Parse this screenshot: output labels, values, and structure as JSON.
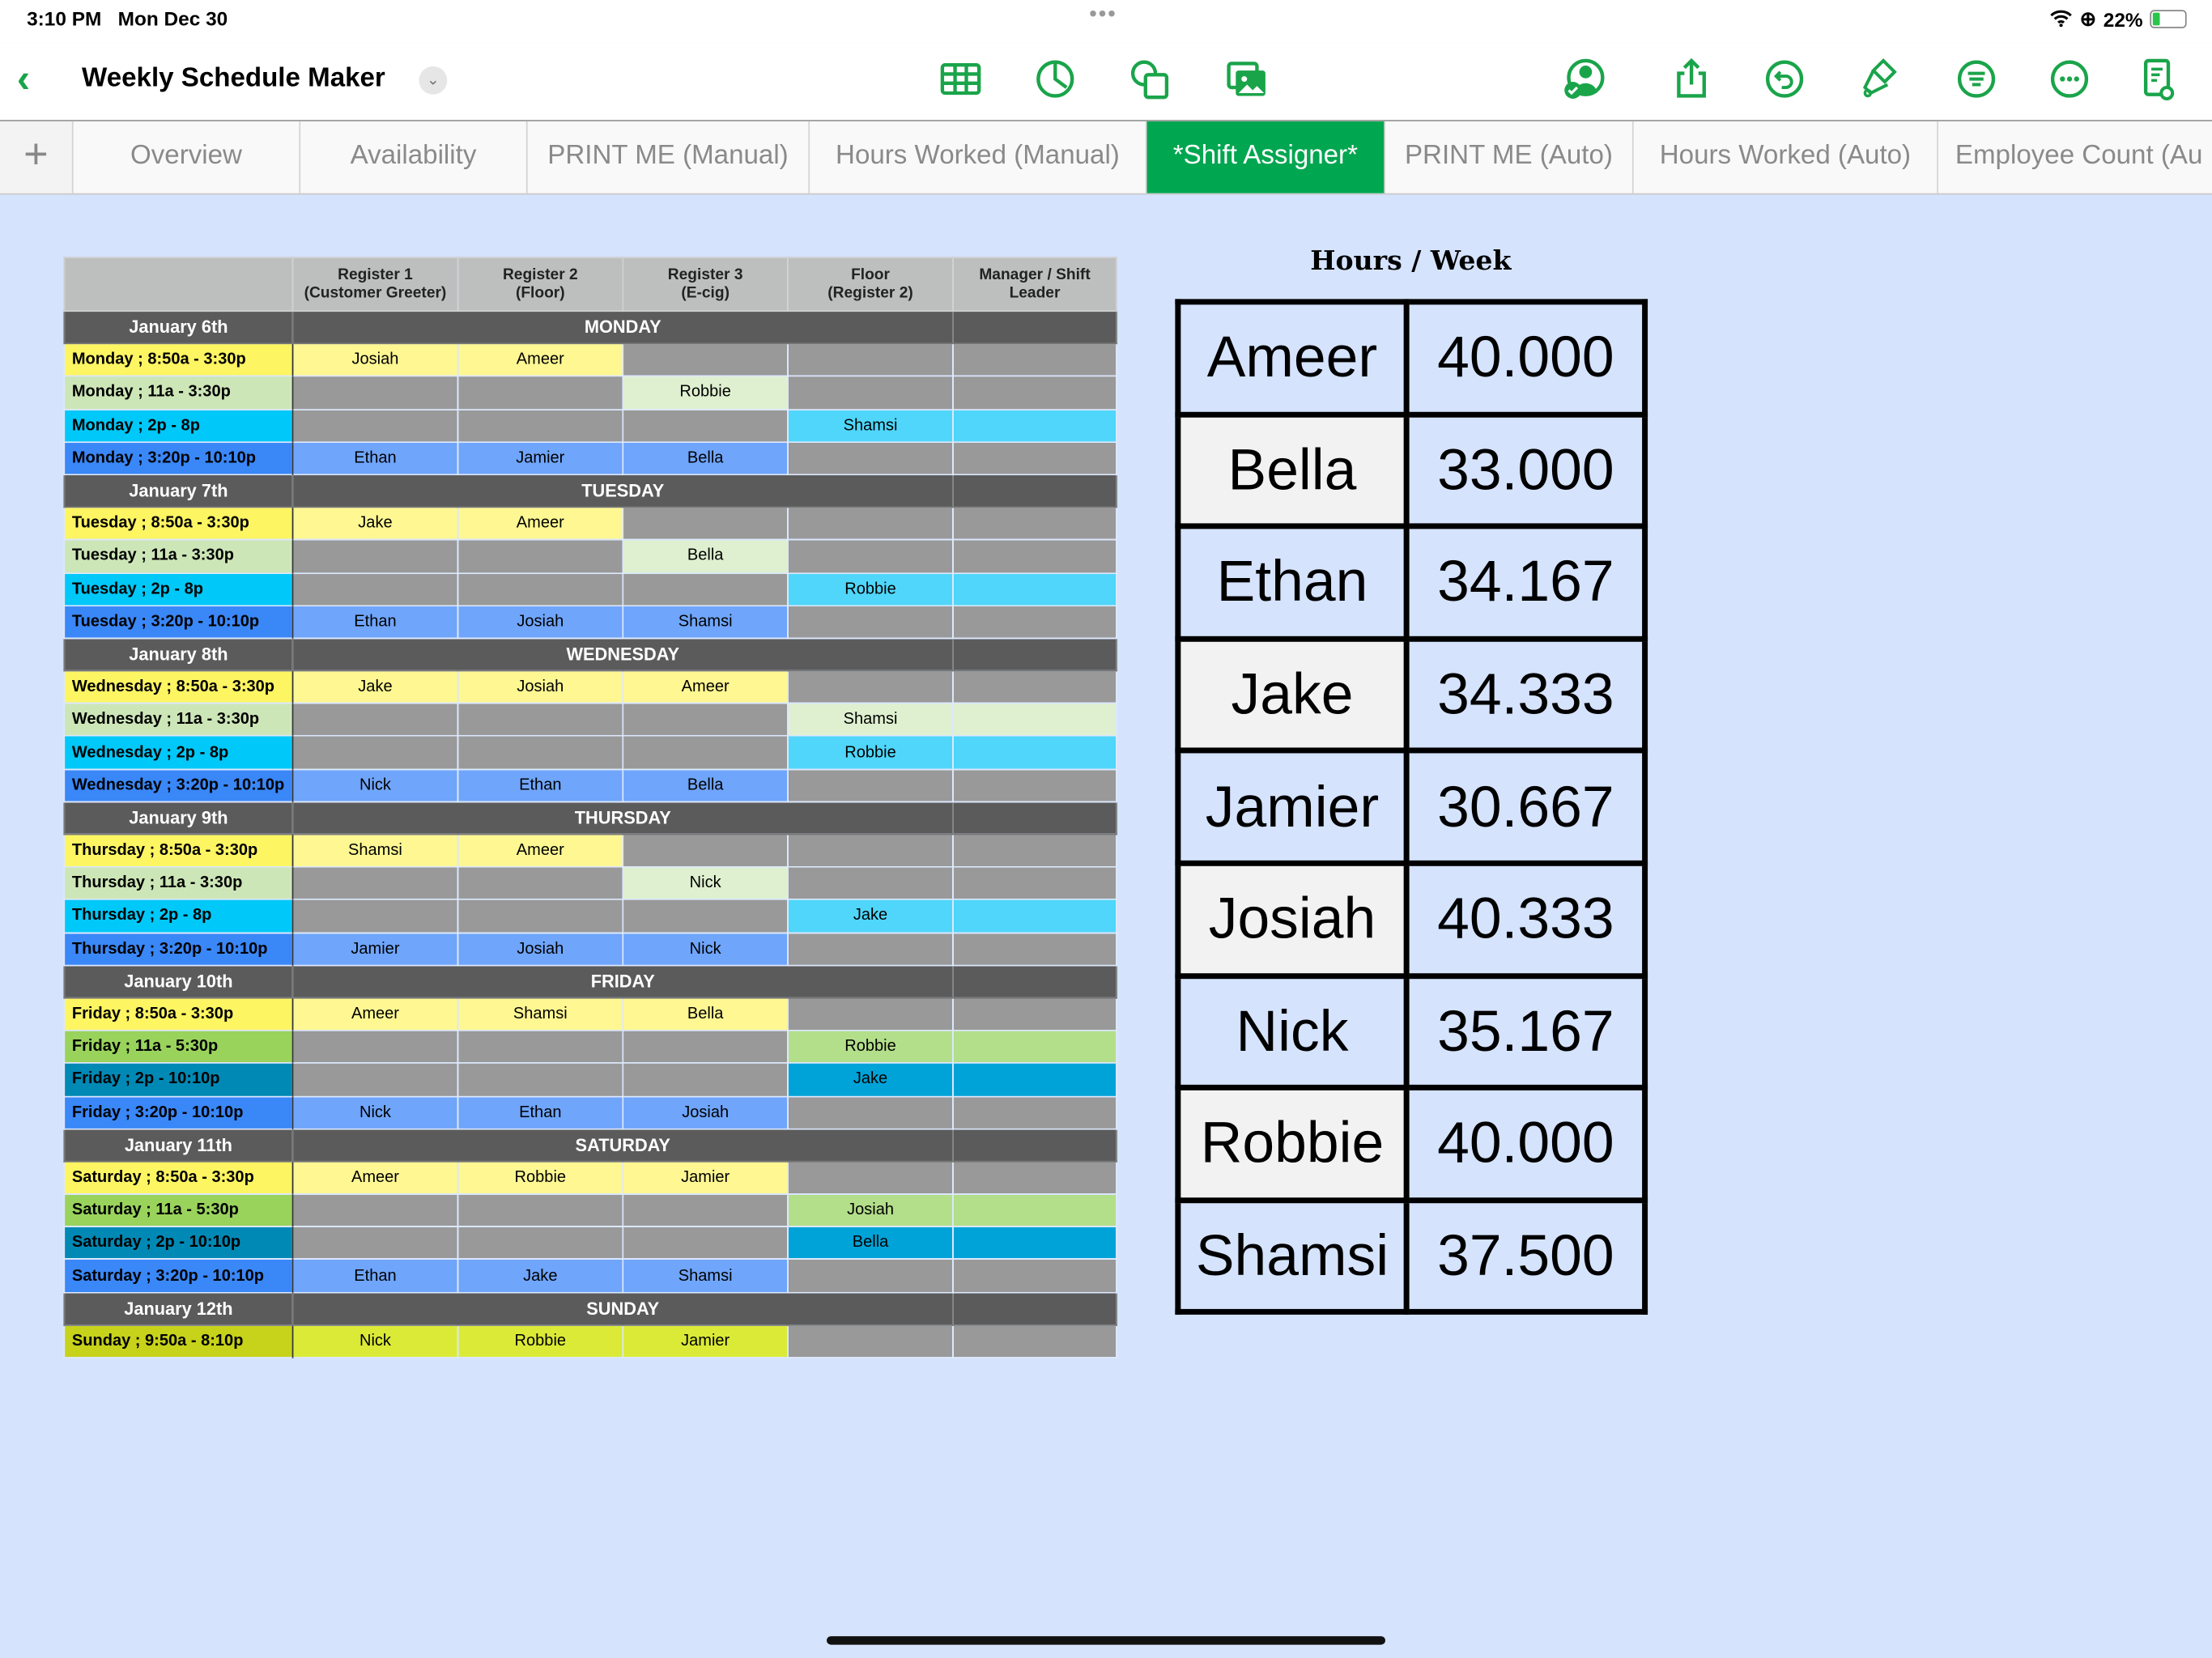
{
  "status": {
    "time": "3:10 PM",
    "date": "Mon Dec 30",
    "battery": "22%",
    "battery_level": 0.22
  },
  "toolbar": {
    "title": "Weekly Schedule Maker",
    "accent": "#1aa44a",
    "icons": [
      "table-icon",
      "chart-icon",
      "shapes-icon",
      "media-icon",
      "collaborate-icon",
      "share-icon",
      "undo-icon",
      "format-brush-icon",
      "organize-icon",
      "more-icon",
      "document-view-icon"
    ]
  },
  "tabs": [
    {
      "label": "Overview"
    },
    {
      "label": "Availability"
    },
    {
      "label": "PRINT ME (Manual)"
    },
    {
      "label": "Hours Worked (Manual)"
    },
    {
      "label": "*Shift Assigner*",
      "active": true
    },
    {
      "label": "PRINT ME (Auto)"
    },
    {
      "label": "Hours Worked (Auto)"
    },
    {
      "label": "Employee Count (Au"
    }
  ],
  "schedule": {
    "headers": [
      "",
      "Register 1\n(Customer Greeter)",
      "Register 2\n(Floor)",
      "Register 3\n(E-cig)",
      "Floor\n(Register 2)",
      "Manager / Shift\nLeader"
    ],
    "colors": {
      "morning": {
        "label": "#fdf562",
        "cell": "#fef792"
      },
      "midday": {
        "label": "#cde6b7",
        "cell": "#dff0d0"
      },
      "afternoon": {
        "label": "#00c8f8",
        "cell": "#4fd6fa"
      },
      "evening": {
        "label": "#3a87f8",
        "cell": "#6fa5fb"
      },
      "midday_long": {
        "label": "#99d35c",
        "cell": "#b3de8a"
      },
      "afternoon_long": {
        "label": "#0089b5",
        "cell": "#00a3d8"
      },
      "sunday": {
        "label": "#c7d21a",
        "cell": "#dbea37"
      },
      "empty": "#999999",
      "day_header": "#5b5b5b",
      "column_header": "#bdbfbe"
    },
    "days": [
      {
        "date": "January 6th",
        "day": "MONDAY",
        "shifts": [
          {
            "label": "Monday ; 8:50a - 3:30p",
            "type": "morning",
            "cells": [
              "Josiah",
              "Ameer",
              "",
              "",
              ""
            ],
            "filled": [
              true,
              true,
              false,
              false,
              false
            ]
          },
          {
            "label": "Monday ; 11a - 3:30p",
            "type": "midday",
            "cells": [
              "",
              "",
              "Robbie",
              "",
              ""
            ],
            "filled": [
              false,
              false,
              true,
              false,
              false
            ]
          },
          {
            "label": "Monday ; 2p - 8p",
            "type": "afternoon",
            "cells": [
              "",
              "",
              "",
              "Shamsi",
              ""
            ],
            "filled": [
              false,
              false,
              false,
              true,
              true
            ]
          },
          {
            "label": "Monday ; 3:20p - 10:10p",
            "type": "evening",
            "cells": [
              "Ethan",
              "Jamier",
              "Bella",
              "",
              ""
            ],
            "filled": [
              true,
              true,
              true,
              false,
              false
            ]
          }
        ]
      },
      {
        "date": "January 7th",
        "day": "TUESDAY",
        "shifts": [
          {
            "label": "Tuesday ; 8:50a - 3:30p",
            "type": "morning",
            "cells": [
              "Jake",
              "Ameer",
              "",
              "",
              ""
            ],
            "filled": [
              true,
              true,
              false,
              false,
              false
            ]
          },
          {
            "label": "Tuesday ; 11a - 3:30p",
            "type": "midday",
            "cells": [
              "",
              "",
              "Bella",
              "",
              ""
            ],
            "filled": [
              false,
              false,
              true,
              false,
              false
            ]
          },
          {
            "label": "Tuesday ; 2p - 8p",
            "type": "afternoon",
            "cells": [
              "",
              "",
              "",
              "Robbie",
              ""
            ],
            "filled": [
              false,
              false,
              false,
              true,
              true
            ]
          },
          {
            "label": "Tuesday ; 3:20p - 10:10p",
            "type": "evening",
            "cells": [
              "Ethan",
              "Josiah",
              "Shamsi",
              "",
              ""
            ],
            "filled": [
              true,
              true,
              true,
              false,
              false
            ]
          }
        ]
      },
      {
        "date": "January 8th",
        "day": "WEDNESDAY",
        "shifts": [
          {
            "label": "Wednesday ; 8:50a - 3:30p",
            "type": "morning",
            "cells": [
              "Jake",
              "Josiah",
              "Ameer",
              "",
              ""
            ],
            "filled": [
              true,
              true,
              true,
              false,
              false
            ]
          },
          {
            "label": "Wednesday ; 11a - 3:30p",
            "type": "midday",
            "cells": [
              "",
              "",
              "",
              "Shamsi",
              ""
            ],
            "filled": [
              false,
              false,
              false,
              true,
              true
            ]
          },
          {
            "label": "Wednesday ; 2p - 8p",
            "type": "afternoon",
            "cells": [
              "",
              "",
              "",
              "Robbie",
              ""
            ],
            "filled": [
              false,
              false,
              false,
              true,
              true
            ]
          },
          {
            "label": "Wednesday ; 3:20p - 10:10p",
            "type": "evening",
            "cells": [
              "Nick",
              "Ethan",
              "Bella",
              "",
              ""
            ],
            "filled": [
              true,
              true,
              true,
              false,
              false
            ]
          }
        ]
      },
      {
        "date": "January 9th",
        "day": "THURSDAY",
        "shifts": [
          {
            "label": "Thursday ; 8:50a - 3:30p",
            "type": "morning",
            "cells": [
              "Shamsi",
              "Ameer",
              "",
              "",
              ""
            ],
            "filled": [
              true,
              true,
              false,
              false,
              false
            ]
          },
          {
            "label": "Thursday ; 11a - 3:30p",
            "type": "midday",
            "cells": [
              "",
              "",
              "Nick",
              "",
              ""
            ],
            "filled": [
              false,
              false,
              true,
              false,
              false
            ]
          },
          {
            "label": "Thursday ; 2p - 8p",
            "type": "afternoon",
            "cells": [
              "",
              "",
              "",
              "Jake",
              ""
            ],
            "filled": [
              false,
              false,
              false,
              true,
              true
            ]
          },
          {
            "label": "Thursday ; 3:20p - 10:10p",
            "type": "evening",
            "cells": [
              "Jamier",
              "Josiah",
              "Nick",
              "",
              ""
            ],
            "filled": [
              true,
              true,
              true,
              false,
              false
            ]
          }
        ]
      },
      {
        "date": "January 10th",
        "day": "FRIDAY",
        "shifts": [
          {
            "label": "Friday ; 8:50a - 3:30p",
            "type": "morning",
            "cells": [
              "Ameer",
              "Shamsi",
              "Bella",
              "",
              ""
            ],
            "filled": [
              true,
              true,
              true,
              false,
              false
            ]
          },
          {
            "label": "Friday ; 11a - 5:30p",
            "type": "midday_long",
            "cells": [
              "",
              "",
              "",
              "Robbie",
              ""
            ],
            "filled": [
              false,
              false,
              false,
              true,
              true
            ]
          },
          {
            "label": "Friday ; 2p - 10:10p",
            "type": "afternoon_long",
            "cells": [
              "",
              "",
              "",
              "Jake",
              ""
            ],
            "filled": [
              false,
              false,
              false,
              true,
              true
            ]
          },
          {
            "label": "Friday ; 3:20p - 10:10p",
            "type": "evening",
            "cells": [
              "Nick",
              "Ethan",
              "Josiah",
              "",
              ""
            ],
            "filled": [
              true,
              true,
              true,
              false,
              false
            ]
          }
        ]
      },
      {
        "date": "January 11th",
        "day": "SATURDAY",
        "shifts": [
          {
            "label": "Saturday ; 8:50a - 3:30p",
            "type": "morning",
            "cells": [
              "Ameer",
              "Robbie",
              "Jamier",
              "",
              ""
            ],
            "filled": [
              true,
              true,
              true,
              false,
              false
            ]
          },
          {
            "label": "Saturday ; 11a - 5:30p",
            "type": "midday_long",
            "cells": [
              "",
              "",
              "",
              "Josiah",
              ""
            ],
            "filled": [
              false,
              false,
              false,
              true,
              true
            ]
          },
          {
            "label": "Saturday ; 2p - 10:10p",
            "type": "afternoon_long",
            "cells": [
              "",
              "",
              "",
              "Bella",
              ""
            ],
            "filled": [
              false,
              false,
              false,
              true,
              true
            ]
          },
          {
            "label": "Saturday ; 3:20p - 10:10p",
            "type": "evening",
            "cells": [
              "Ethan",
              "Jake",
              "Shamsi",
              "",
              ""
            ],
            "filled": [
              true,
              true,
              true,
              false,
              false
            ]
          }
        ]
      },
      {
        "date": "January 12th",
        "day": "SUNDAY",
        "shifts": [
          {
            "label": "Sunday ; 9:50a - 8:10p",
            "type": "sunday",
            "cells": [
              "Nick",
              "Robbie",
              "Jamier",
              "",
              ""
            ],
            "filled": [
              true,
              true,
              true,
              false,
              false
            ]
          }
        ]
      }
    ]
  },
  "hours": {
    "title": "Hours / Week",
    "rows": [
      {
        "name": "Ameer",
        "value": "40.000"
      },
      {
        "name": "Bella",
        "value": "33.000"
      },
      {
        "name": "Ethan",
        "value": "34.167"
      },
      {
        "name": "Jake",
        "value": "34.333"
      },
      {
        "name": "Jamier",
        "value": "30.667"
      },
      {
        "name": "Josiah",
        "value": "40.333"
      },
      {
        "name": "Nick",
        "value": "35.167"
      },
      {
        "name": "Robbie",
        "value": "40.000"
      },
      {
        "name": "Shamsi",
        "value": "37.500"
      }
    ]
  }
}
